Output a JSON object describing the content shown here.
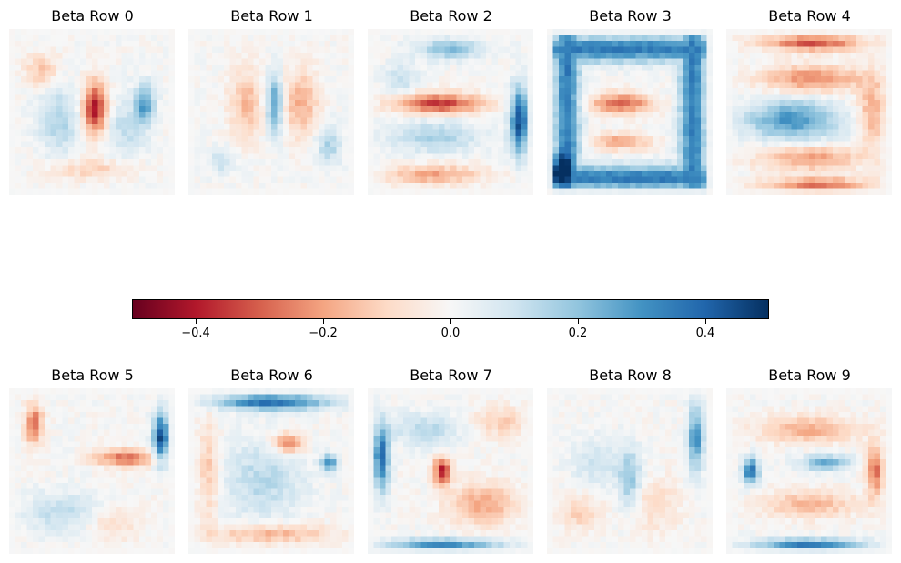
{
  "chart_data": {
    "type": "heatmap",
    "grid_size": [
      28,
      28
    ],
    "colormap": "RdBu",
    "vmin": -0.5,
    "vmax": 0.5,
    "axis_visible": false,
    "colorbar": {
      "orientation": "horizontal",
      "ticks": [
        -0.4,
        -0.2,
        0.0,
        0.2,
        0.4
      ],
      "tick_labels": [
        "−0.4",
        "−0.2",
        "0.0",
        "0.2",
        "0.4"
      ]
    },
    "panels": [
      {
        "title": "Beta Row 0",
        "features": [
          {
            "kind": "blob",
            "cx": 0.52,
            "cy": 0.48,
            "rx": 0.07,
            "ry": 0.16,
            "v": -0.42
          },
          {
            "kind": "blob",
            "cx": 0.3,
            "cy": 0.55,
            "rx": 0.12,
            "ry": 0.2,
            "v": 0.16
          },
          {
            "kind": "blob",
            "cx": 0.82,
            "cy": 0.45,
            "rx": 0.06,
            "ry": 0.12,
            "v": 0.28
          },
          {
            "kind": "blob",
            "cx": 0.2,
            "cy": 0.25,
            "rx": 0.1,
            "ry": 0.1,
            "v": -0.14
          },
          {
            "kind": "blob",
            "cx": 0.7,
            "cy": 0.6,
            "rx": 0.12,
            "ry": 0.18,
            "v": 0.12
          },
          {
            "kind": "blob",
            "cx": 0.5,
            "cy": 0.85,
            "rx": 0.25,
            "ry": 0.06,
            "v": -0.12
          }
        ]
      },
      {
        "title": "Beta Row 1",
        "features": [
          {
            "kind": "blob",
            "cx": 0.52,
            "cy": 0.45,
            "rx": 0.05,
            "ry": 0.18,
            "v": 0.28
          },
          {
            "kind": "blob",
            "cx": 0.35,
            "cy": 0.45,
            "rx": 0.1,
            "ry": 0.2,
            "v": -0.16
          },
          {
            "kind": "blob",
            "cx": 0.68,
            "cy": 0.45,
            "rx": 0.1,
            "ry": 0.2,
            "v": -0.18
          },
          {
            "kind": "blob",
            "cx": 0.85,
            "cy": 0.7,
            "rx": 0.08,
            "ry": 0.12,
            "v": 0.16
          },
          {
            "kind": "blob",
            "cx": 0.2,
            "cy": 0.8,
            "rx": 0.08,
            "ry": 0.08,
            "v": 0.12
          }
        ]
      },
      {
        "title": "Beta Row 2",
        "features": [
          {
            "kind": "blob",
            "cx": 0.43,
            "cy": 0.45,
            "rx": 0.26,
            "ry": 0.06,
            "v": -0.36
          },
          {
            "kind": "blob",
            "cx": 0.92,
            "cy": 0.55,
            "rx": 0.06,
            "ry": 0.2,
            "v": 0.45
          },
          {
            "kind": "blob",
            "cx": 0.5,
            "cy": 0.12,
            "rx": 0.2,
            "ry": 0.06,
            "v": 0.22
          },
          {
            "kind": "blob",
            "cx": 0.4,
            "cy": 0.88,
            "rx": 0.28,
            "ry": 0.06,
            "v": -0.2
          },
          {
            "kind": "blob",
            "cx": 0.4,
            "cy": 0.65,
            "rx": 0.28,
            "ry": 0.1,
            "v": 0.16
          },
          {
            "kind": "blob",
            "cx": 0.2,
            "cy": 0.3,
            "rx": 0.1,
            "ry": 0.1,
            "v": 0.12
          }
        ]
      },
      {
        "title": "Beta Row 3",
        "features": [
          {
            "kind": "rect",
            "x0": 0.12,
            "y0": 0.12,
            "x1": 0.88,
            "y1": 0.9,
            "w": 0.08,
            "v": 0.35
          },
          {
            "kind": "blob",
            "cx": 0.45,
            "cy": 0.45,
            "rx": 0.18,
            "ry": 0.06,
            "v": -0.3
          },
          {
            "kind": "blob",
            "cx": 0.45,
            "cy": 0.68,
            "rx": 0.16,
            "ry": 0.05,
            "v": -0.22
          },
          {
            "kind": "blob",
            "cx": 0.08,
            "cy": 0.85,
            "rx": 0.05,
            "ry": 0.08,
            "v": 0.42
          }
        ]
      },
      {
        "title": "Beta Row 4",
        "features": [
          {
            "kind": "blob",
            "cx": 0.4,
            "cy": 0.55,
            "rx": 0.28,
            "ry": 0.12,
            "v": 0.3
          },
          {
            "kind": "blob",
            "cx": 0.52,
            "cy": 0.08,
            "rx": 0.3,
            "ry": 0.05,
            "v": -0.32
          },
          {
            "kind": "blob",
            "cx": 0.55,
            "cy": 0.95,
            "rx": 0.3,
            "ry": 0.05,
            "v": -0.32
          },
          {
            "kind": "blob",
            "cx": 0.5,
            "cy": 0.78,
            "rx": 0.3,
            "ry": 0.07,
            "v": -0.22
          },
          {
            "kind": "blob",
            "cx": 0.52,
            "cy": 0.3,
            "rx": 0.3,
            "ry": 0.08,
            "v": -0.24
          },
          {
            "kind": "blob",
            "cx": 0.88,
            "cy": 0.5,
            "rx": 0.08,
            "ry": 0.2,
            "v": -0.2
          }
        ]
      },
      {
        "title": "Beta Row 5",
        "features": [
          {
            "kind": "blob",
            "cx": 0.92,
            "cy": 0.3,
            "rx": 0.05,
            "ry": 0.15,
            "v": 0.45
          },
          {
            "kind": "blob",
            "cx": 0.7,
            "cy": 0.42,
            "rx": 0.18,
            "ry": 0.05,
            "v": -0.28
          },
          {
            "kind": "blob",
            "cx": 0.15,
            "cy": 0.22,
            "rx": 0.05,
            "ry": 0.12,
            "v": -0.3
          },
          {
            "kind": "blob",
            "cx": 0.35,
            "cy": 0.75,
            "rx": 0.25,
            "ry": 0.12,
            "v": 0.14
          },
          {
            "kind": "blob",
            "cx": 0.6,
            "cy": 0.8,
            "rx": 0.18,
            "ry": 0.12,
            "v": -0.1
          }
        ]
      },
      {
        "title": "Beta Row 6",
        "features": [
          {
            "kind": "blob",
            "cx": 0.5,
            "cy": 0.08,
            "rx": 0.35,
            "ry": 0.05,
            "v": 0.38
          },
          {
            "kind": "blob",
            "cx": 0.6,
            "cy": 0.33,
            "rx": 0.1,
            "ry": 0.06,
            "v": -0.28
          },
          {
            "kind": "blob",
            "cx": 0.45,
            "cy": 0.55,
            "rx": 0.24,
            "ry": 0.24,
            "v": 0.14
          },
          {
            "kind": "blob",
            "cx": 0.85,
            "cy": 0.45,
            "rx": 0.05,
            "ry": 0.05,
            "v": 0.3
          },
          {
            "kind": "blob",
            "cx": 0.5,
            "cy": 0.88,
            "rx": 0.35,
            "ry": 0.06,
            "v": -0.18
          },
          {
            "kind": "blob",
            "cx": 0.12,
            "cy": 0.5,
            "rx": 0.06,
            "ry": 0.3,
            "v": -0.14
          }
        ]
      },
      {
        "title": "Beta Row 7",
        "features": [
          {
            "kind": "blob",
            "cx": 0.08,
            "cy": 0.42,
            "rx": 0.05,
            "ry": 0.2,
            "v": 0.4
          },
          {
            "kind": "blob",
            "cx": 0.45,
            "cy": 0.95,
            "rx": 0.35,
            "ry": 0.04,
            "v": 0.36
          },
          {
            "kind": "blob",
            "cx": 0.45,
            "cy": 0.5,
            "rx": 0.05,
            "ry": 0.08,
            "v": -0.42
          },
          {
            "kind": "blob",
            "cx": 0.7,
            "cy": 0.7,
            "rx": 0.2,
            "ry": 0.12,
            "v": -0.2
          },
          {
            "kind": "blob",
            "cx": 0.35,
            "cy": 0.25,
            "rx": 0.2,
            "ry": 0.1,
            "v": 0.14
          },
          {
            "kind": "blob",
            "cx": 0.8,
            "cy": 0.2,
            "rx": 0.15,
            "ry": 0.1,
            "v": -0.12
          }
        ]
      },
      {
        "title": "Beta Row 8",
        "features": [
          {
            "kind": "blob",
            "cx": 0.9,
            "cy": 0.3,
            "rx": 0.05,
            "ry": 0.2,
            "v": 0.3
          },
          {
            "kind": "blob",
            "cx": 0.5,
            "cy": 0.55,
            "rx": 0.07,
            "ry": 0.18,
            "v": 0.2
          },
          {
            "kind": "blob",
            "cx": 0.3,
            "cy": 0.45,
            "rx": 0.15,
            "ry": 0.15,
            "v": 0.1
          },
          {
            "kind": "blob",
            "cx": 0.65,
            "cy": 0.7,
            "rx": 0.15,
            "ry": 0.15,
            "v": -0.1
          },
          {
            "kind": "blob",
            "cx": 0.2,
            "cy": 0.75,
            "rx": 0.12,
            "ry": 0.1,
            "v": -0.12
          }
        ]
      },
      {
        "title": "Beta Row 9",
        "features": [
          {
            "kind": "blob",
            "cx": 0.5,
            "cy": 0.95,
            "rx": 0.32,
            "ry": 0.04,
            "v": 0.4
          },
          {
            "kind": "blob",
            "cx": 0.15,
            "cy": 0.5,
            "rx": 0.05,
            "ry": 0.08,
            "v": 0.38
          },
          {
            "kind": "blob",
            "cx": 0.6,
            "cy": 0.45,
            "rx": 0.15,
            "ry": 0.05,
            "v": 0.25
          },
          {
            "kind": "blob",
            "cx": 0.9,
            "cy": 0.5,
            "rx": 0.05,
            "ry": 0.15,
            "v": -0.28
          },
          {
            "kind": "blob",
            "cx": 0.5,
            "cy": 0.25,
            "rx": 0.3,
            "ry": 0.08,
            "v": -0.18
          },
          {
            "kind": "blob",
            "cx": 0.5,
            "cy": 0.7,
            "rx": 0.3,
            "ry": 0.08,
            "v": -0.16
          }
        ]
      }
    ]
  }
}
